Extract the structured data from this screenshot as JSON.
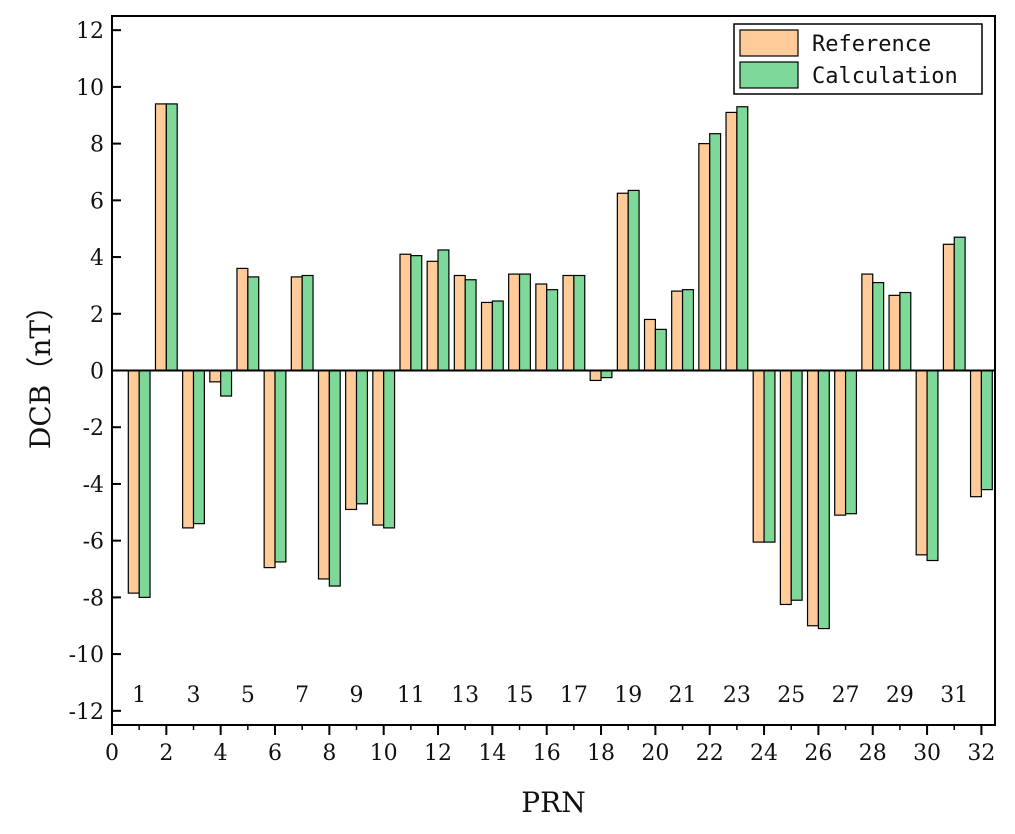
{
  "chart_data": {
    "type": "bar",
    "xlabel": "PRN",
    "ylabel": "DCB（nT）",
    "xlim": [
      0,
      32.5
    ],
    "ylim": [
      -12.5,
      12.5
    ],
    "x_ticks": [
      "0",
      "2",
      "4",
      "6",
      "8",
      "10",
      "12",
      "14",
      "16",
      "18",
      "20",
      "22",
      "24",
      "26",
      "28",
      "30",
      "32"
    ],
    "y_ticks": [
      "12",
      "10",
      "8",
      "6",
      "4",
      "2",
      "0",
      "-2",
      "-4",
      "-6",
      "-8",
      "-10",
      "-12"
    ],
    "category_labels": [
      "1",
      "3",
      "5",
      "7",
      "9",
      "11",
      "13",
      "15",
      "17",
      "19",
      "21",
      "23",
      "25",
      "27",
      "29",
      "31"
    ],
    "categories": [
      1,
      2,
      3,
      4,
      5,
      6,
      7,
      8,
      9,
      10,
      11,
      12,
      13,
      14,
      15,
      16,
      17,
      18,
      19,
      20,
      21,
      22,
      23,
      24,
      25,
      26,
      27,
      28,
      29,
      30,
      31,
      32
    ],
    "series": [
      {
        "name": "Reference",
        "color": "#FFCC99",
        "values": [
          -7.85,
          9.4,
          -5.55,
          -0.4,
          3.6,
          -6.95,
          3.3,
          -7.35,
          -4.9,
          -5.45,
          4.1,
          3.85,
          3.35,
          2.4,
          3.4,
          3.05,
          3.35,
          -0.35,
          6.25,
          1.8,
          2.8,
          8.0,
          9.1,
          -6.05,
          -8.25,
          -9.0,
          -5.1,
          3.4,
          2.65,
          -6.5,
          4.45,
          -4.45
        ]
      },
      {
        "name": "Calculation",
        "color": "#7ED899",
        "values": [
          -8.0,
          9.4,
          -5.4,
          -0.9,
          3.3,
          -6.75,
          3.35,
          -7.6,
          -4.7,
          -5.55,
          4.05,
          4.25,
          3.2,
          2.45,
          3.4,
          2.85,
          3.35,
          -0.25,
          6.35,
          1.45,
          2.85,
          8.35,
          9.3,
          -6.05,
          -8.1,
          -9.1,
          -5.05,
          3.1,
          2.75,
          -6.7,
          4.7,
          -4.2
        ]
      }
    ],
    "legend_position": "top-right"
  }
}
